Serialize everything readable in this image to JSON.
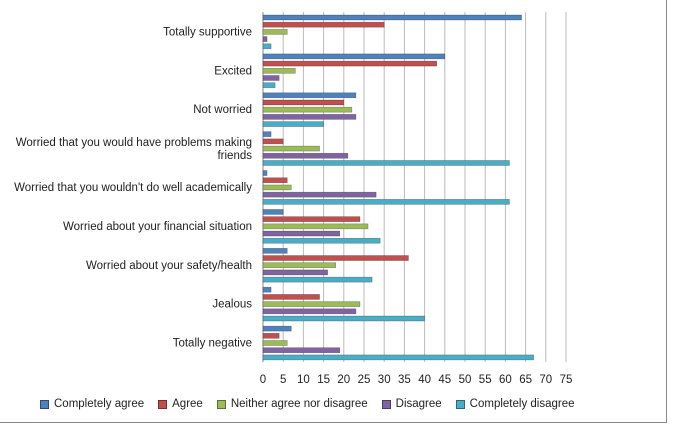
{
  "chart_data": {
    "type": "bar",
    "orientation": "horizontal",
    "categories": [
      "Totally supportive",
      "Excited",
      "Not worried",
      "Worried that you would have problems making friends",
      "Worried that you wouldn't do well academically",
      "Worried about your financial situation",
      "Worried about your safety/health",
      "Jealous",
      "Totally negative"
    ],
    "category_lines": [
      [
        "Totally supportive"
      ],
      [
        "Excited"
      ],
      [
        "Not worried"
      ],
      [
        "Worried that you would have problems making",
        "friends"
      ],
      [
        "Worried that you wouldn't do well academically"
      ],
      [
        "Worried about your financial situation"
      ],
      [
        "Worried about your safety/health"
      ],
      [
        "Jealous"
      ],
      [
        "Totally negative"
      ]
    ],
    "series": [
      {
        "name": "Completely agree",
        "color": "#4f81bd",
        "values": [
          64,
          45,
          23,
          2,
          1,
          5,
          6,
          2,
          7
        ]
      },
      {
        "name": "Agree",
        "color": "#c0504d",
        "values": [
          30,
          43,
          20,
          5,
          6,
          24,
          36,
          14,
          4
        ]
      },
      {
        "name": "Neither agree nor disagree",
        "color": "#9bbb59",
        "values": [
          6,
          8,
          22,
          14,
          7,
          26,
          18,
          24,
          6
        ]
      },
      {
        "name": "Disagree",
        "color": "#8064a2",
        "values": [
          1,
          4,
          23,
          21,
          28,
          19,
          16,
          23,
          19
        ]
      },
      {
        "name": "Completely disagree",
        "color": "#4bacc6",
        "values": [
          2,
          3,
          15,
          61,
          61,
          29,
          27,
          40,
          67
        ]
      }
    ],
    "xlim": [
      0,
      75
    ],
    "xticks": [
      "0",
      "5",
      "10",
      "15",
      "20",
      "25",
      "30",
      "35",
      "40",
      "45",
      "50",
      "55",
      "60",
      "65",
      "70",
      "75"
    ],
    "grid": true,
    "legend_position": "bottom"
  }
}
